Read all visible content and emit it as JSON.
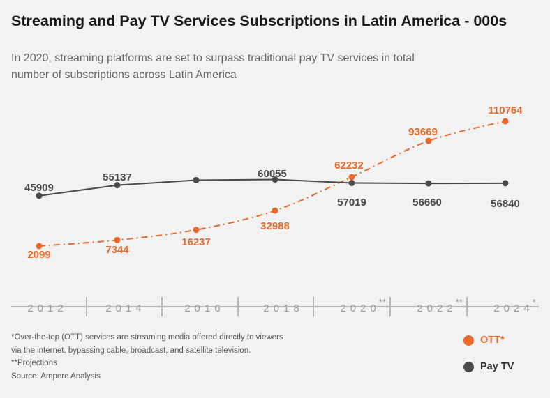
{
  "header": {
    "title": "Streaming and Pay TV Services Subscriptions in Latin America - 000s",
    "subtitle": "In 2020, streaming platforms are set to surpass traditional pay TV services in total number of subscriptions across Latin America"
  },
  "colors": {
    "ott": "#e8692a",
    "paytv": "#4a4a4a",
    "axis": "#b8b8b8",
    "axis_text": "#9a9a9a"
  },
  "chart_data": {
    "type": "line",
    "categories": [
      "2012",
      "2014",
      "2016",
      "2018",
      "2020",
      "2022",
      "2024"
    ],
    "category_marks": [
      "",
      "",
      "",
      "",
      "**",
      "**",
      "*"
    ],
    "series": [
      {
        "key": "ott",
        "name": "OTT*",
        "values": [
          2099,
          7344,
          16237,
          32988,
          62232,
          93669,
          110764
        ],
        "labels": [
          "2099",
          "7344",
          "16237",
          "32988",
          "62232",
          "93669",
          "110764"
        ]
      },
      {
        "key": "paytv",
        "name": "Pay TV",
        "values": [
          45909,
          55137,
          59500,
          60055,
          57019,
          56660,
          56840
        ],
        "labels": [
          "45909",
          "55137",
          "",
          "60055",
          "57019",
          "56660",
          "56840"
        ]
      }
    ],
    "ylim": [
      0,
      120000
    ],
    "grid": false
  },
  "footnotes": [
    "*Over-the-top (OTT) services are streaming media offered directly to viewers",
    "via the internet, bypassing cable, broadcast, and satellite television.",
    "**Projections",
    "Source: Ampere Analysis"
  ],
  "legend": {
    "position": "bottom-right",
    "items": [
      {
        "label": "OTT*",
        "key": "ott"
      },
      {
        "label": "Pay TV",
        "key": "paytv"
      }
    ]
  }
}
